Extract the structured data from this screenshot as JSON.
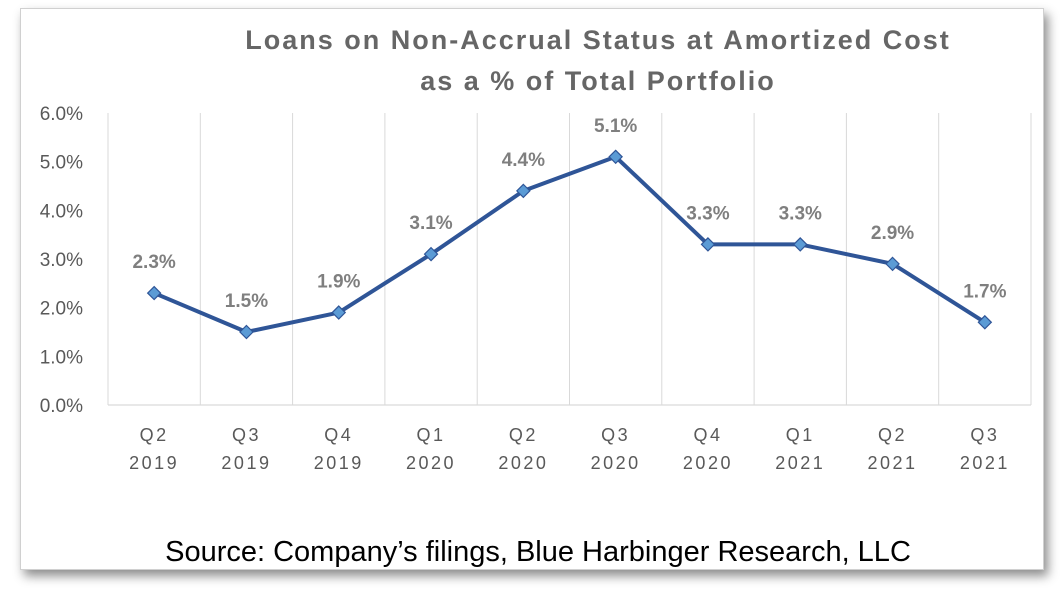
{
  "chart_data": {
    "type": "line",
    "title_lines": [
      "Loans on Non-Accrual Status at Amortized Cost",
      "as a % of Total Portfolio"
    ],
    "categories": [
      [
        "Q2",
        "2019"
      ],
      [
        "Q3",
        "2019"
      ],
      [
        "Q4",
        "2019"
      ],
      [
        "Q1",
        "2020"
      ],
      [
        "Q2",
        "2020"
      ],
      [
        "Q3",
        "2020"
      ],
      [
        "Q4",
        "2020"
      ],
      [
        "Q1",
        "2021"
      ],
      [
        "Q2",
        "2021"
      ],
      [
        "Q3",
        "2021"
      ]
    ],
    "series": [
      {
        "values": [
          2.3,
          1.5,
          1.9,
          3.1,
          4.4,
          5.1,
          3.3,
          3.3,
          2.9,
          1.7
        ],
        "data_labels": [
          "2.3%",
          "1.5%",
          "1.9%",
          "3.1%",
          "4.4%",
          "5.1%",
          "3.3%",
          "3.3%",
          "2.9%",
          "1.7%"
        ],
        "color": "#2f5597",
        "marker_color": "#5b9bd5"
      }
    ],
    "ylim": [
      0,
      6
    ],
    "yticks": [
      "0.0%",
      "1.0%",
      "2.0%",
      "3.0%",
      "4.0%",
      "5.0%",
      "6.0%"
    ],
    "grid": "vertical",
    "source": "Source: Company’s filings, Blue Harbinger Research, LLC"
  }
}
